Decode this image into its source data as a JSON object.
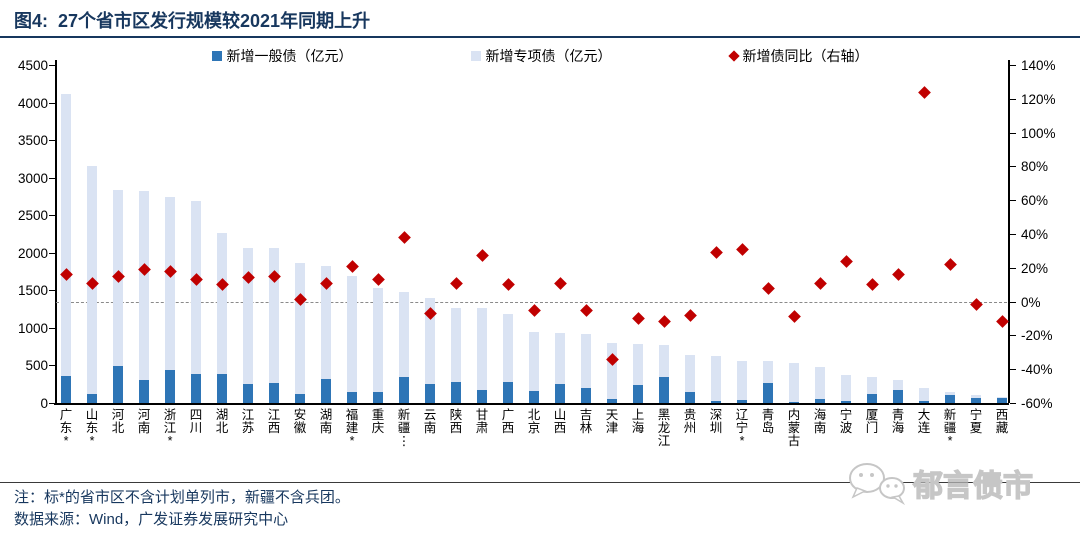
{
  "header": {
    "title": "图4:  27个省市区发行规模较2021年同期上升"
  },
  "legend": {
    "items": [
      {
        "label": "新增一般债（亿元）",
        "marker": "square",
        "color": "#2E75B6"
      },
      {
        "label": "新增专项债（亿元）",
        "marker": "square",
        "color": "#DAE3F3"
      },
      {
        "label": "新增债同比（右轴）",
        "marker": "diamond",
        "color": "#C00000"
      }
    ]
  },
  "chart_data": {
    "type": "bar",
    "subtype": "stacked-bars-with-scatter-overlay",
    "title": "27个省市区发行规模较2021年同期上升",
    "categories": [
      "广东*",
      "山东*",
      "河北",
      "河南",
      "浙江*",
      "四川",
      "湖北",
      "江苏",
      "江西",
      "安徽",
      "湖南",
      "福建*",
      "重庆",
      "新疆…",
      "云南",
      "陕西",
      "甘肃",
      "广西",
      "北京",
      "山西",
      "吉林",
      "天津",
      "上海",
      "黑龙江",
      "贵州",
      "深圳",
      "辽宁*",
      "青岛",
      "内蒙古",
      "海南",
      "宁波",
      "厦门",
      "青海",
      "大连",
      "新疆*",
      "宁夏",
      "西藏"
    ],
    "series": [
      {
        "name": "新增一般债（亿元）",
        "type": "bar",
        "axis": "left",
        "color": "#2E75B6",
        "values": [
          360,
          125,
          490,
          305,
          445,
          390,
          385,
          255,
          270,
          120,
          315,
          145,
          145,
          350,
          250,
          285,
          170,
          275,
          155,
          250,
          205,
          55,
          245,
          345,
          145,
          25,
          45,
          270,
          15,
          50,
          20,
          115,
          170,
          30,
          100,
          60,
          60
        ]
      },
      {
        "name": "新增专项债（亿元）",
        "type": "bar",
        "axis": "left",
        "color": "#DAE3F3",
        "values": [
          3750,
          3030,
          2340,
          2515,
          2300,
          2300,
          1880,
          1810,
          1790,
          1740,
          1515,
          1550,
          1385,
          1130,
          1150,
          980,
          1090,
          915,
          790,
          685,
          720,
          745,
          545,
          425,
          490,
          595,
          515,
          285,
          520,
          435,
          350,
          230,
          135,
          170,
          50,
          50,
          20
        ]
      },
      {
        "name": "新增债同比（右轴）",
        "type": "scatter",
        "axis": "right",
        "color": "#C00000",
        "values": [
          16,
          11,
          15,
          19,
          18,
          13,
          10,
          14,
          15,
          1,
          11,
          21,
          13,
          38,
          -7,
          11,
          27,
          10,
          -5,
          11,
          -5,
          -34,
          -10,
          -12,
          -8,
          29,
          31,
          8,
          -9,
          11,
          24,
          10,
          16,
          124,
          22,
          -2,
          -12
        ]
      }
    ],
    "left_axis": {
      "min": 0,
      "max": 4500,
      "step": 500,
      "tick_labels": [
        "4500",
        "4000",
        "3500",
        "3000",
        "2500",
        "2000",
        "1500",
        "1000",
        "500",
        "0"
      ]
    },
    "right_axis": {
      "min": -60,
      "max": 140,
      "step": 20,
      "tick_labels": [
        "140%",
        "120%",
        "100%",
        "80%",
        "60%",
        "40%",
        "20%",
        "0%",
        "-20%",
        "-40%",
        "-60%"
      ]
    },
    "zero_line": {
      "axis": "right",
      "value": 0,
      "style": "dashed"
    },
    "grid": false,
    "legend_position": "top"
  },
  "footer": {
    "note": "注：标*的省市区不含计划单列市，新疆不含兵团。",
    "source": "数据来源：Wind，广发证券发展研究中心"
  },
  "watermark": {
    "text": "郁言债市",
    "icon": "wechat-icon"
  },
  "colors": {
    "title_text": "#17375E",
    "note_text": "#17375E",
    "general_bond_bar": "#2E75B6",
    "special_bond_bar": "#DAE3F3",
    "yoy_diamond": "#C00000",
    "axis_text": "#000000"
  }
}
